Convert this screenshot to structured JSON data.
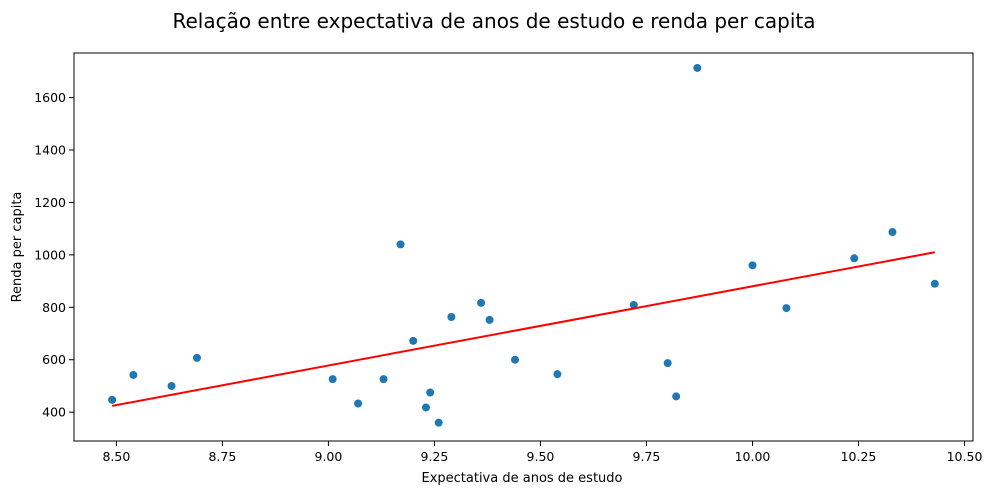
{
  "chart_data": {
    "type": "scatter",
    "title": "Relação entre expectativa de anos de estudo e renda per capita",
    "xlabel": "Expectativa de anos de estudo",
    "ylabel": "Renda per capita",
    "xlim": [
      8.4,
      10.52
    ],
    "ylim": [
      290,
      1770
    ],
    "xticks": [
      8.5,
      8.75,
      9.0,
      9.25,
      9.5,
      9.75,
      10.0,
      10.25,
      10.5
    ],
    "xtick_labels": [
      "8.50",
      "8.75",
      "9.00",
      "9.25",
      "9.50",
      "9.75",
      "10.00",
      "10.25",
      "10.50"
    ],
    "yticks": [
      400,
      600,
      800,
      1000,
      1200,
      1400,
      1600
    ],
    "ytick_labels": [
      "400",
      "600",
      "800",
      "1000",
      "1200",
      "1400",
      "1600"
    ],
    "grid": false,
    "colors": {
      "points": "#1f77b4",
      "trendline": "#ff0000"
    },
    "points": [
      {
        "x": 8.49,
        "y": 447
      },
      {
        "x": 8.54,
        "y": 542
      },
      {
        "x": 8.63,
        "y": 500
      },
      {
        "x": 8.69,
        "y": 607
      },
      {
        "x": 9.01,
        "y": 526
      },
      {
        "x": 9.07,
        "y": 433
      },
      {
        "x": 9.13,
        "y": 526
      },
      {
        "x": 9.17,
        "y": 1040
      },
      {
        "x": 9.2,
        "y": 672
      },
      {
        "x": 9.23,
        "y": 418
      },
      {
        "x": 9.24,
        "y": 475
      },
      {
        "x": 9.26,
        "y": 360
      },
      {
        "x": 9.29,
        "y": 763
      },
      {
        "x": 9.36,
        "y": 817
      },
      {
        "x": 9.38,
        "y": 752
      },
      {
        "x": 9.44,
        "y": 600
      },
      {
        "x": 9.54,
        "y": 545
      },
      {
        "x": 9.72,
        "y": 809
      },
      {
        "x": 9.8,
        "y": 587
      },
      {
        "x": 9.82,
        "y": 460
      },
      {
        "x": 9.87,
        "y": 1713
      },
      {
        "x": 10.0,
        "y": 960
      },
      {
        "x": 10.08,
        "y": 797
      },
      {
        "x": 10.24,
        "y": 987
      },
      {
        "x": 10.33,
        "y": 1087
      },
      {
        "x": 10.43,
        "y": 890
      }
    ],
    "trendline": {
      "x": [
        8.49,
        10.43
      ],
      "y": [
        424,
        1010
      ]
    }
  }
}
